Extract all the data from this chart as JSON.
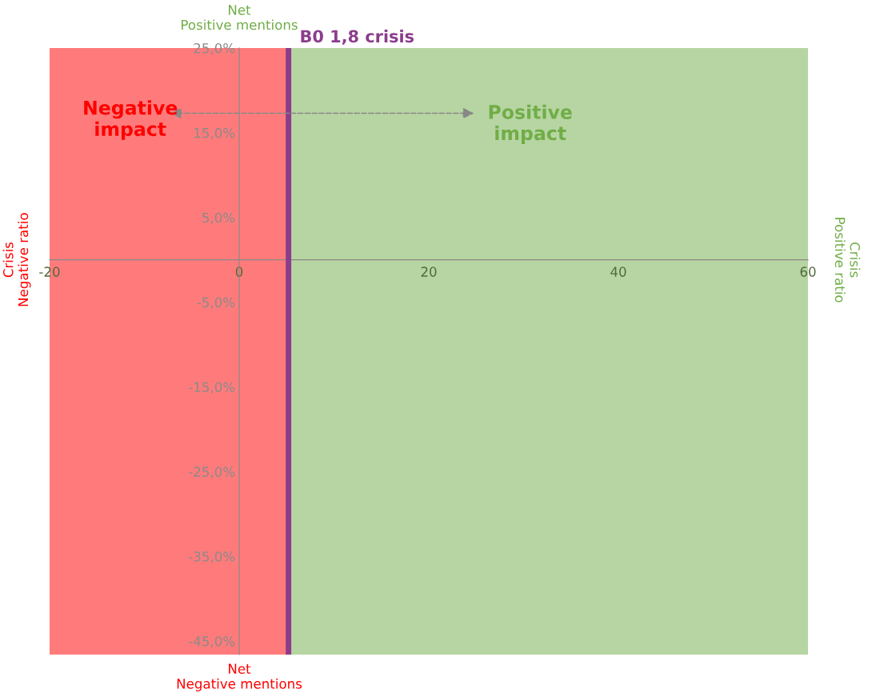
{
  "chart_data": {
    "type": "scatter",
    "xlim": [
      -20,
      60
    ],
    "xticks": [
      -20,
      0,
      20,
      40,
      60
    ],
    "ylim": [
      -46.6,
      25
    ],
    "yticks": [
      {
        "value": 25,
        "label": "25,0%"
      },
      {
        "value": 15,
        "label": "15,0%"
      },
      {
        "value": 5,
        "label": "5,0%"
      },
      {
        "value": -5,
        "label": "-5,0%"
      },
      {
        "value": -15,
        "label": "-15,0%"
      },
      {
        "value": -25,
        "label": "-25,0%"
      },
      {
        "value": -35,
        "label": "-35,0%"
      },
      {
        "value": -45,
        "label": "-45,0%"
      }
    ],
    "bands": [
      {
        "axis": "x",
        "from": -20,
        "to": 5.2,
        "color": "#ff7b7b"
      },
      {
        "axis": "x",
        "from": 5.2,
        "to": 60,
        "color": "#b7d5a2"
      }
    ],
    "ref_lines": [
      {
        "axis": "x",
        "value": 5.2,
        "label": "B0 1,8 crisis",
        "color": "#8b3d8c"
      }
    ],
    "annotations": [
      "Negative\nimpact",
      "Positive\nimpact",
      "Net\nPositive mentions",
      "Net\nNegative mentions",
      "Crisis\nNegative ratio",
      "Crisis\nPositive ratio"
    ],
    "grid": false,
    "legend": false
  }
}
